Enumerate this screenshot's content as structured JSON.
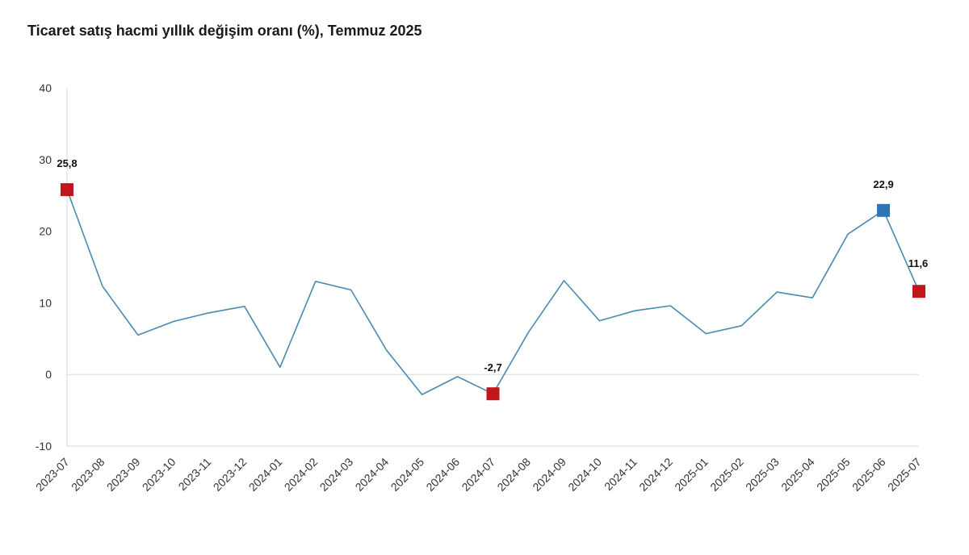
{
  "chart_data": {
    "type": "line",
    "title": "Ticaret satış hacmi yıllık değişim oranı (%), Temmuz 2025",
    "xlabel": "",
    "ylabel": "",
    "ylim": [
      -10,
      40
    ],
    "yticks": [
      -10,
      0,
      10,
      20,
      30,
      40
    ],
    "categories": [
      "2023-07",
      "2023-08",
      "2023-09",
      "2023-10",
      "2023-11",
      "2023-12",
      "2024-01",
      "2024-02",
      "2024-03",
      "2024-04",
      "2024-05",
      "2024-06",
      "2024-07",
      "2024-08",
      "2024-09",
      "2024-10",
      "2024-11",
      "2024-12",
      "2025-01",
      "2025-02",
      "2025-03",
      "2025-04",
      "2025-05",
      "2025-06",
      "2025-07"
    ],
    "series": [
      {
        "name": "Ticaret satış hacmi yıllık değişim oranı (%)",
        "values": [
          25.8,
          12.3,
          5.5,
          7.4,
          8.6,
          9.5,
          1.0,
          13.0,
          11.8,
          3.4,
          -2.8,
          -0.3,
          -2.7,
          5.9,
          13.1,
          7.5,
          8.9,
          9.6,
          5.7,
          6.8,
          11.5,
          10.7,
          19.6,
          22.9,
          11.6
        ],
        "color": "#4a8ab0"
      }
    ],
    "highlights": [
      {
        "index": 0,
        "label": "25,8",
        "color": "#c0171c"
      },
      {
        "index": 12,
        "label": "-2,7",
        "color": "#c0171c"
      },
      {
        "index": 23,
        "label": "22,9",
        "color": "#2e75b6"
      },
      {
        "index": 24,
        "label": "11,6",
        "color": "#c0171c"
      }
    ],
    "zero_line_color": "#d9d9d9",
    "axis_color": "#d9d9d9"
  }
}
